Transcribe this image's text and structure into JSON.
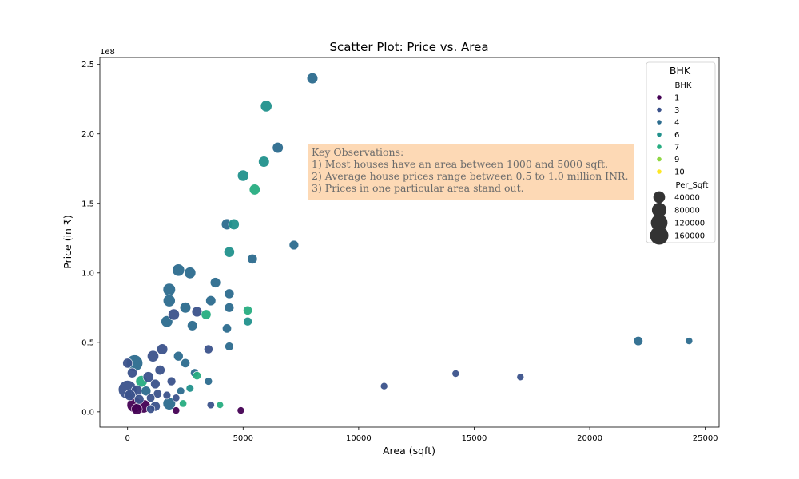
{
  "chart_data": {
    "type": "scatter",
    "title": "Scatter Plot: Price vs. Area",
    "xlabel": "Area (sqft)",
    "ylabel": "Price (in ₹)",
    "y_offset_label": "1e8",
    "xlim": [
      -1200,
      25600
    ],
    "ylim": [
      -11000000,
      255000000
    ],
    "x_ticks": [
      0,
      5000,
      10000,
      15000,
      20000,
      25000
    ],
    "x_tick_labels": [
      "0",
      "5000",
      "10000",
      "15000",
      "20000",
      "25000"
    ],
    "y_ticks": [
      0,
      50000000,
      100000000,
      150000000,
      200000000,
      250000000
    ],
    "y_tick_labels": [
      "0.0",
      "0.5",
      "1.0",
      "1.5",
      "2.0",
      "2.5"
    ],
    "grid": false,
    "legend_placement": "top-right",
    "annotation": {
      "lines": [
        "Key Observations:",
        "1) Most houses have an area between 1000 and 5000 sqft.",
        "2) Average house prices range between 0.5 to 1.0 million INR.",
        "3) Prices in one particular area stand out."
      ],
      "background": "#fdd9b5"
    },
    "legend": {
      "title": "BHK",
      "hue_title": "BHK",
      "hue_entries": [
        {
          "label": "1",
          "color": "#440154"
        },
        {
          "label": "3",
          "color": "#3b528b"
        },
        {
          "label": "4",
          "color": "#2c6c8e"
        },
        {
          "label": "6",
          "color": "#21918c"
        },
        {
          "label": "7",
          "color": "#27ad81"
        },
        {
          "label": "9",
          "color": "#8fd744"
        },
        {
          "label": "10",
          "color": "#fde725"
        }
      ],
      "size_title": "Per_Sqft",
      "size_entries": [
        {
          "label": "40000",
          "value": 40000
        },
        {
          "label": "80000",
          "value": 80000
        },
        {
          "label": "120000",
          "value": 120000
        },
        {
          "label": "160000",
          "value": 160000
        }
      ]
    },
    "hue_colors": {
      "1": "#440154",
      "2": "#482878",
      "3": "#3b528b",
      "4": "#2c6c8e",
      "5": "#25858e",
      "6": "#21918c",
      "7": "#27ad81",
      "9": "#8fd744",
      "10": "#fde725"
    },
    "points": [
      {
        "x": 8000,
        "y": 240000000,
        "bhk": 4,
        "per_sqft": 30000
      },
      {
        "x": 6000,
        "y": 220000000,
        "bhk": 6,
        "per_sqft": 36000
      },
      {
        "x": 6500,
        "y": 190000000,
        "bhk": 4,
        "per_sqft": 29000
      },
      {
        "x": 5900,
        "y": 180000000,
        "bhk": 6,
        "per_sqft": 30000
      },
      {
        "x": 5000,
        "y": 170000000,
        "bhk": 6,
        "per_sqft": 34000
      },
      {
        "x": 5500,
        "y": 160000000,
        "bhk": 7,
        "per_sqft": 29000
      },
      {
        "x": 4300,
        "y": 135000000,
        "bhk": 4,
        "per_sqft": 31000
      },
      {
        "x": 4600,
        "y": 135000000,
        "bhk": 6,
        "per_sqft": 29000
      },
      {
        "x": 7200,
        "y": 120000000,
        "bhk": 4,
        "per_sqft": 17000
      },
      {
        "x": 4400,
        "y": 115000000,
        "bhk": 6,
        "per_sqft": 26000
      },
      {
        "x": 5400,
        "y": 110000000,
        "bhk": 4,
        "per_sqft": 20000
      },
      {
        "x": 2200,
        "y": 102000000,
        "bhk": 4,
        "per_sqft": 46000
      },
      {
        "x": 2700,
        "y": 100000000,
        "bhk": 4,
        "per_sqft": 37000
      },
      {
        "x": 3800,
        "y": 93000000,
        "bhk": 4,
        "per_sqft": 24000
      },
      {
        "x": 1800,
        "y": 88000000,
        "bhk": 4,
        "per_sqft": 49000
      },
      {
        "x": 4400,
        "y": 85000000,
        "bhk": 4,
        "per_sqft": 19000
      },
      {
        "x": 1800,
        "y": 80000000,
        "bhk": 4,
        "per_sqft": 44000
      },
      {
        "x": 3600,
        "y": 80000000,
        "bhk": 4,
        "per_sqft": 22000
      },
      {
        "x": 4400,
        "y": 75000000,
        "bhk": 4,
        "per_sqft": 17000
      },
      {
        "x": 2500,
        "y": 75000000,
        "bhk": 4,
        "per_sqft": 30000
      },
      {
        "x": 3000,
        "y": 72000000,
        "bhk": 3,
        "per_sqft": 24000
      },
      {
        "x": 2000,
        "y": 70000000,
        "bhk": 3,
        "per_sqft": 35000
      },
      {
        "x": 3400,
        "y": 70000000,
        "bhk": 7,
        "per_sqft": 20000
      },
      {
        "x": 5200,
        "y": 73000000,
        "bhk": 7,
        "per_sqft": 14000
      },
      {
        "x": 4300,
        "y": 60000000,
        "bhk": 4,
        "per_sqft": 14000
      },
      {
        "x": 1700,
        "y": 65000000,
        "bhk": 4,
        "per_sqft": 38000
      },
      {
        "x": 2800,
        "y": 62000000,
        "bhk": 4,
        "per_sqft": 22000
      },
      {
        "x": 5200,
        "y": 65000000,
        "bhk": 6,
        "per_sqft": 12500
      },
      {
        "x": 4400,
        "y": 47000000,
        "bhk": 4,
        "per_sqft": 11000
      },
      {
        "x": 3500,
        "y": 45000000,
        "bhk": 3,
        "per_sqft": 13000
      },
      {
        "x": 1500,
        "y": 45000000,
        "bhk": 3,
        "per_sqft": 30000
      },
      {
        "x": 2200,
        "y": 40000000,
        "bhk": 4,
        "per_sqft": 18000
      },
      {
        "x": 1100,
        "y": 40000000,
        "bhk": 3,
        "per_sqft": 36000
      },
      {
        "x": 300,
        "y": 35000000,
        "bhk": 4,
        "per_sqft": 117000
      },
      {
        "x": 2500,
        "y": 35000000,
        "bhk": 4,
        "per_sqft": 14000
      },
      {
        "x": 1400,
        "y": 30000000,
        "bhk": 3,
        "per_sqft": 21000
      },
      {
        "x": 900,
        "y": 25000000,
        "bhk": 3,
        "per_sqft": 28000
      },
      {
        "x": 2900,
        "y": 28000000,
        "bhk": 4,
        "per_sqft": 9500
      },
      {
        "x": 1900,
        "y": 22000000,
        "bhk": 3,
        "per_sqft": 12000
      },
      {
        "x": 3500,
        "y": 22000000,
        "bhk": 4,
        "per_sqft": 6300
      },
      {
        "x": 3000,
        "y": 26000000,
        "bhk": 7,
        "per_sqft": 8700
      },
      {
        "x": 600,
        "y": 22000000,
        "bhk": 7,
        "per_sqft": 37000
      },
      {
        "x": 1200,
        "y": 20000000,
        "bhk": 3,
        "per_sqft": 17000
      },
      {
        "x": 2700,
        "y": 17000000,
        "bhk": 6,
        "per_sqft": 6300
      },
      {
        "x": 2300,
        "y": 15000000,
        "bhk": 4,
        "per_sqft": 6500
      },
      {
        "x": 0,
        "y": 16000000,
        "bhk": 3,
        "per_sqft": 160000
      },
      {
        "x": 400,
        "y": 15000000,
        "bhk": 3,
        "per_sqft": 37000
      },
      {
        "x": 800,
        "y": 15000000,
        "bhk": 4,
        "per_sqft": 19000
      },
      {
        "x": 1300,
        "y": 13000000,
        "bhk": 3,
        "per_sqft": 10000
      },
      {
        "x": 1700,
        "y": 12000000,
        "bhk": 3,
        "per_sqft": 7000
      },
      {
        "x": 2100,
        "y": 10000000,
        "bhk": 3,
        "per_sqft": 4800
      },
      {
        "x": 1000,
        "y": 10000000,
        "bhk": 3,
        "per_sqft": 10000
      },
      {
        "x": 500,
        "y": 9000000,
        "bhk": 3,
        "per_sqft": 18000
      },
      {
        "x": 100,
        "y": 12000000,
        "bhk": 3,
        "per_sqft": 30000
      },
      {
        "x": 1800,
        "y": 6000000,
        "bhk": 4,
        "per_sqft": 50000
      },
      {
        "x": 300,
        "y": 5000000,
        "bhk": 1,
        "per_sqft": 90000
      },
      {
        "x": 700,
        "y": 4000000,
        "bhk": 1,
        "per_sqft": 60000
      },
      {
        "x": 1200,
        "y": 4000000,
        "bhk": 3,
        "per_sqft": 20000
      },
      {
        "x": 2400,
        "y": 6000000,
        "bhk": 7,
        "per_sqft": 5000
      },
      {
        "x": 3600,
        "y": 5000000,
        "bhk": 3,
        "per_sqft": 5000
      },
      {
        "x": 4000,
        "y": 5000000,
        "bhk": 7,
        "per_sqft": 3000
      },
      {
        "x": 4900,
        "y": 1000000,
        "bhk": 1,
        "per_sqft": 4000
      },
      {
        "x": 2100,
        "y": 1000000,
        "bhk": 1,
        "per_sqft": 4000
      },
      {
        "x": 400,
        "y": 2000000,
        "bhk": 1,
        "per_sqft": 30000
      },
      {
        "x": 1000,
        "y": 2000000,
        "bhk": 3,
        "per_sqft": 10000
      },
      {
        "x": 0,
        "y": 35000000,
        "bhk": 3,
        "per_sqft": 20000
      },
      {
        "x": 200,
        "y": 28000000,
        "bhk": 3,
        "per_sqft": 20000
      },
      {
        "x": 11100,
        "y": 18500000,
        "bhk": 3,
        "per_sqft": 4000
      },
      {
        "x": 14200,
        "y": 27500000,
        "bhk": 3,
        "per_sqft": 4000
      },
      {
        "x": 17000,
        "y": 25000000,
        "bhk": 3,
        "per_sqft": 4000
      },
      {
        "x": 22100,
        "y": 51000000,
        "bhk": 4,
        "per_sqft": 15000
      },
      {
        "x": 24300,
        "y": 51000000,
        "bhk": 4,
        "per_sqft": 4000
      }
    ]
  }
}
